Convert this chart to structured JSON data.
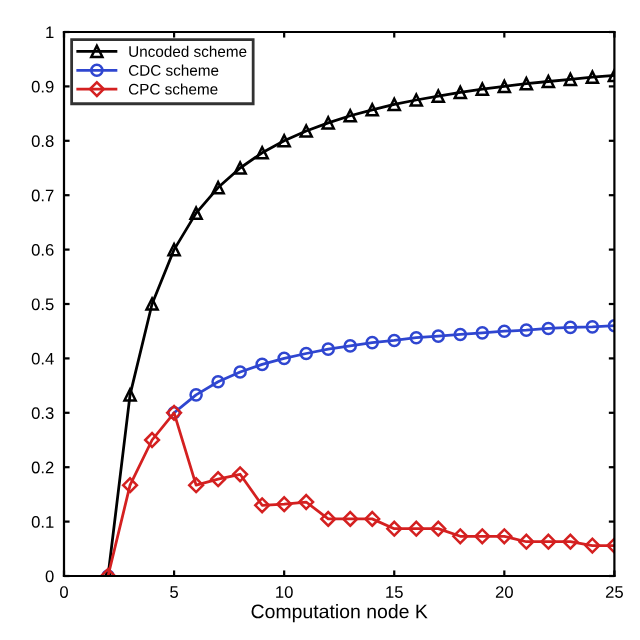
{
  "chart_data": {
    "type": "line",
    "xlabel": "Computation node K",
    "x": [
      2,
      3,
      4,
      5,
      6,
      7,
      8,
      9,
      10,
      11,
      12,
      13,
      14,
      15,
      16,
      17,
      18,
      19,
      20,
      21,
      22,
      23,
      24,
      25
    ],
    "series": [
      {
        "name": "Uncoded scheme",
        "color": "#000000",
        "marker": "triangle",
        "values": [
          0,
          0.333,
          0.5,
          0.6,
          0.667,
          0.714,
          0.75,
          0.778,
          0.8,
          0.818,
          0.833,
          0.846,
          0.857,
          0.867,
          0.875,
          0.882,
          0.889,
          0.895,
          0.9,
          0.905,
          0.909,
          0.913,
          0.917,
          0.92
        ]
      },
      {
        "name": "CDC scheme",
        "color": "#2f46d0",
        "marker": "circle",
        "values": [
          0,
          null,
          null,
          0.3,
          0.333,
          0.357,
          0.375,
          0.389,
          0.4,
          0.409,
          0.417,
          0.423,
          0.429,
          0.433,
          0.438,
          0.441,
          0.444,
          0.447,
          0.45,
          0.452,
          0.455,
          0.457,
          0.458,
          0.46
        ]
      },
      {
        "name": "CPC scheme",
        "color": "#d42020",
        "marker": "diamond",
        "values": [
          0,
          0.167,
          0.25,
          0.3,
          0.167,
          0.178,
          0.187,
          0.13,
          0.132,
          0.136,
          0.105,
          0.105,
          0.105,
          0.087,
          0.087,
          0.087,
          0.073,
          0.073,
          0.073,
          0.063,
          0.063,
          0.063,
          0.056,
          0.056
        ]
      }
    ],
    "xlim": [
      0,
      25
    ],
    "xticks": [
      0,
      5,
      10,
      15,
      20,
      25
    ],
    "ylim": [
      0,
      1
    ],
    "yticks": [
      0,
      0.1,
      0.2,
      0.3,
      0.4,
      0.5,
      0.6,
      0.7,
      0.8,
      0.9,
      1
    ],
    "grid": false,
    "legend": "top left",
    "line_style": "solid"
  }
}
